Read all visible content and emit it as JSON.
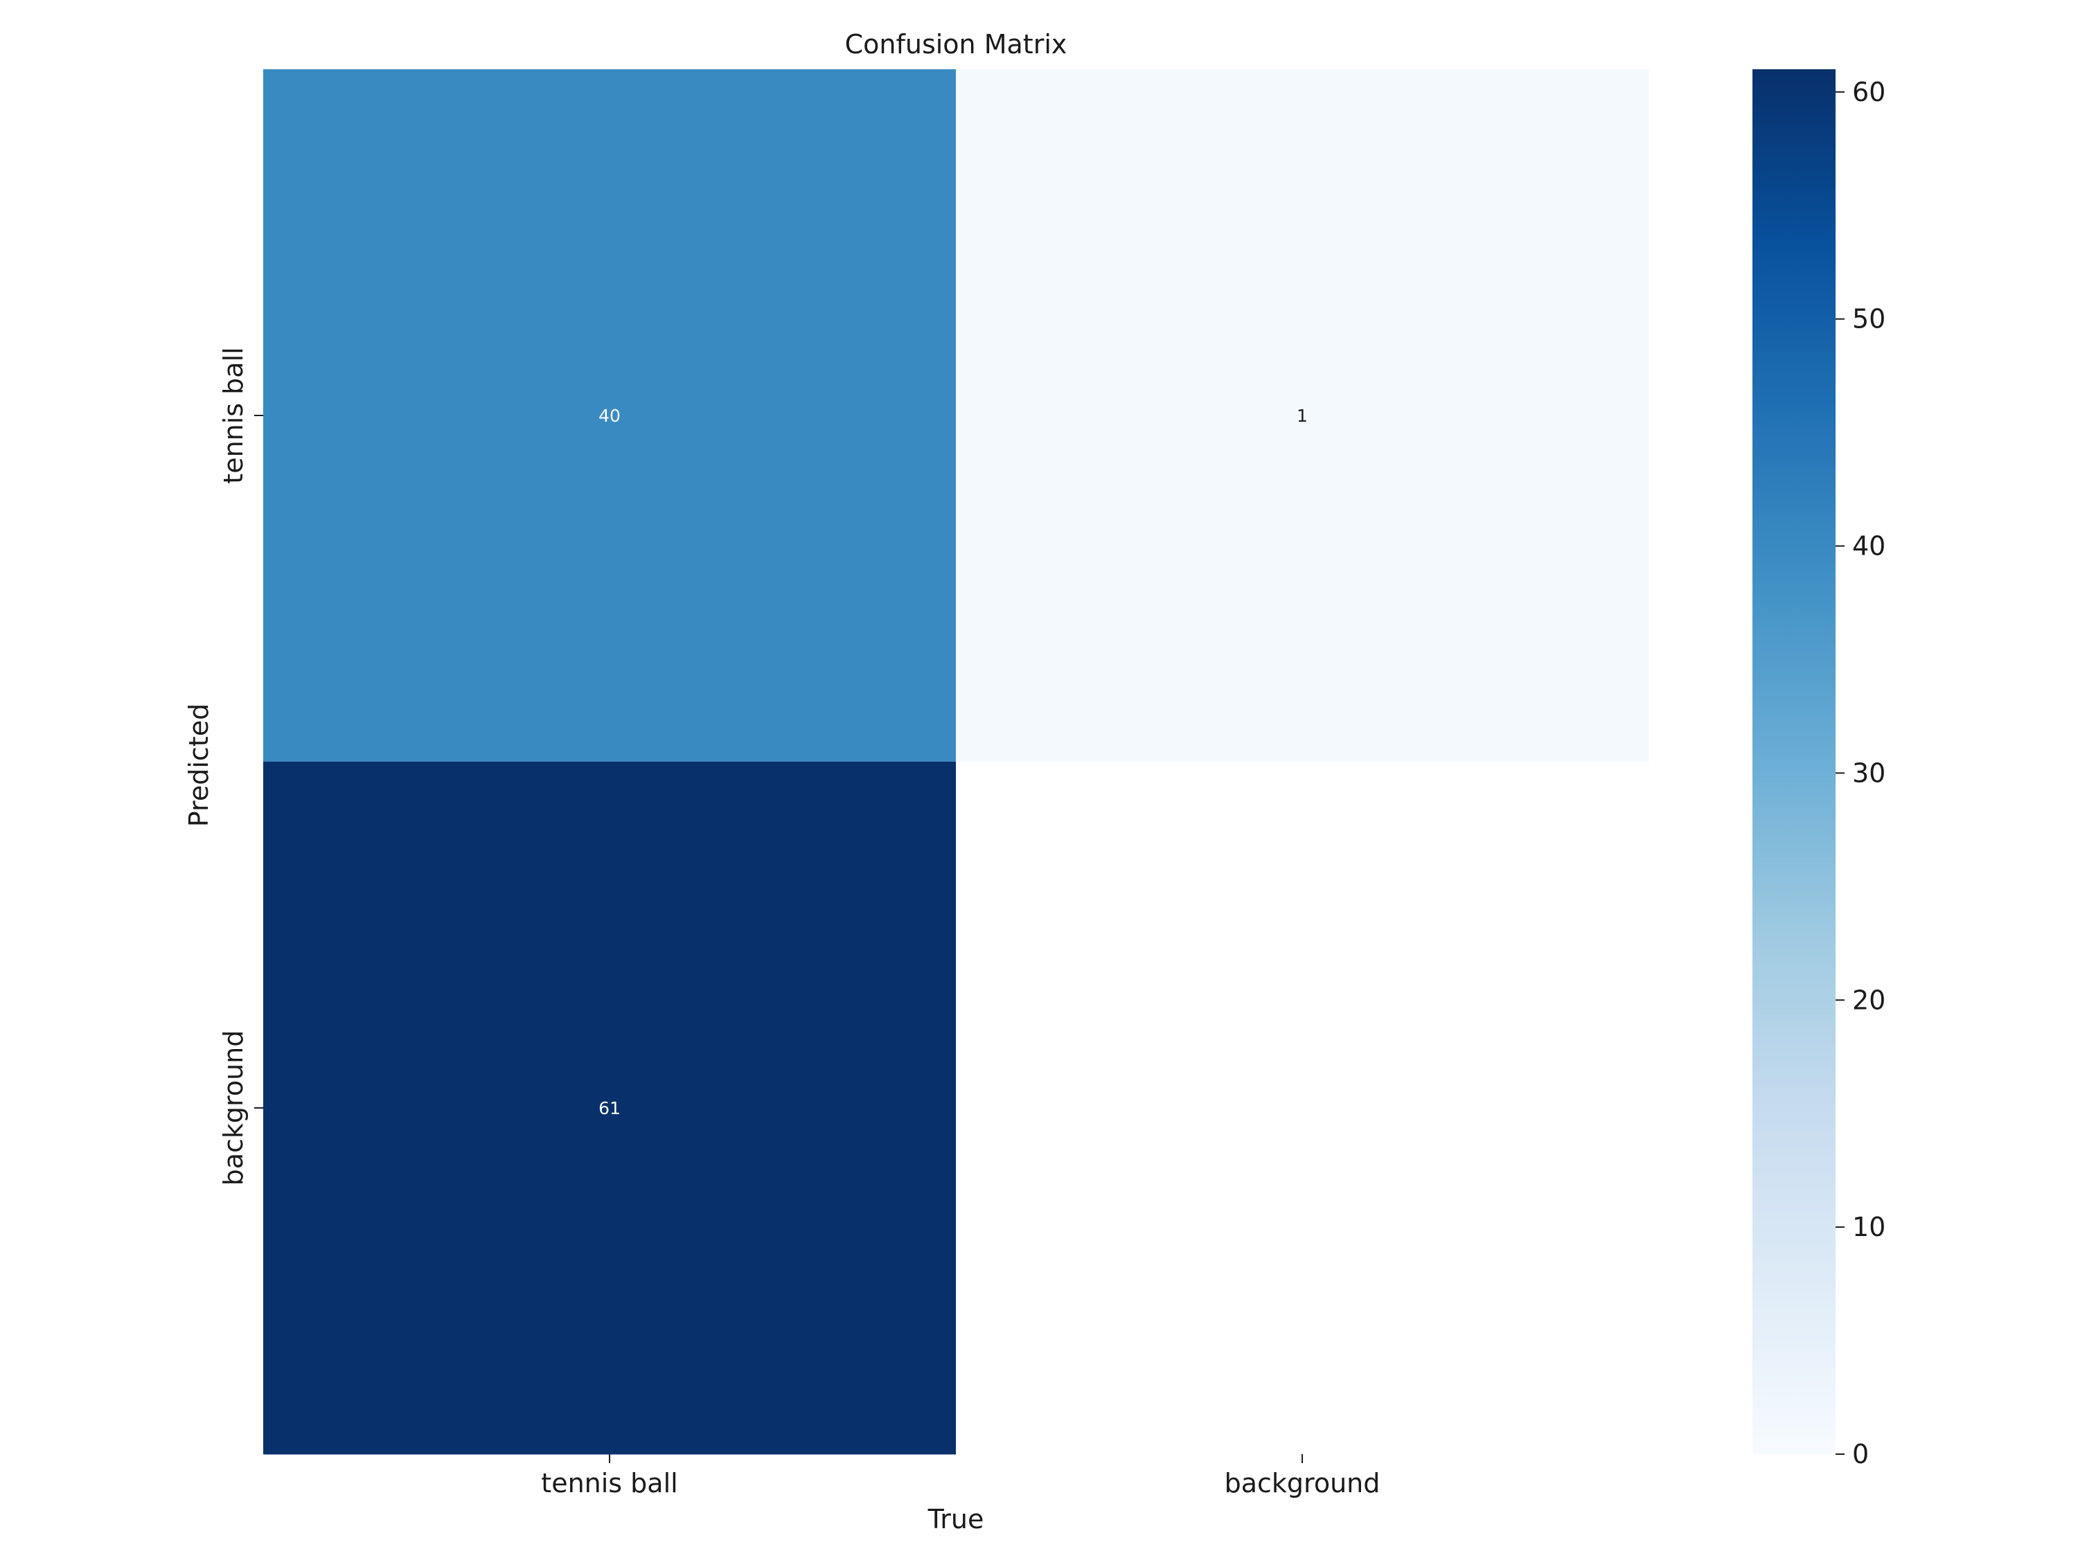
{
  "chart_data": {
    "type": "heatmap",
    "title": "Confusion Matrix",
    "xlabel": "True",
    "ylabel": "Predicted",
    "x_categories": [
      "tennis ball",
      "background"
    ],
    "y_categories": [
      "tennis ball",
      "background"
    ],
    "values": [
      [
        40,
        1
      ],
      [
        61,
        null
      ]
    ],
    "colormap": "Blues",
    "colorbar": {
      "min": 0,
      "max": 61,
      "ticks": [
        0,
        10,
        20,
        30,
        40,
        50,
        60
      ]
    },
    "grid": false,
    "colors": {
      "low": "#f7fbff",
      "high": "#08306b",
      "empty_cell": "#ffffff"
    }
  }
}
